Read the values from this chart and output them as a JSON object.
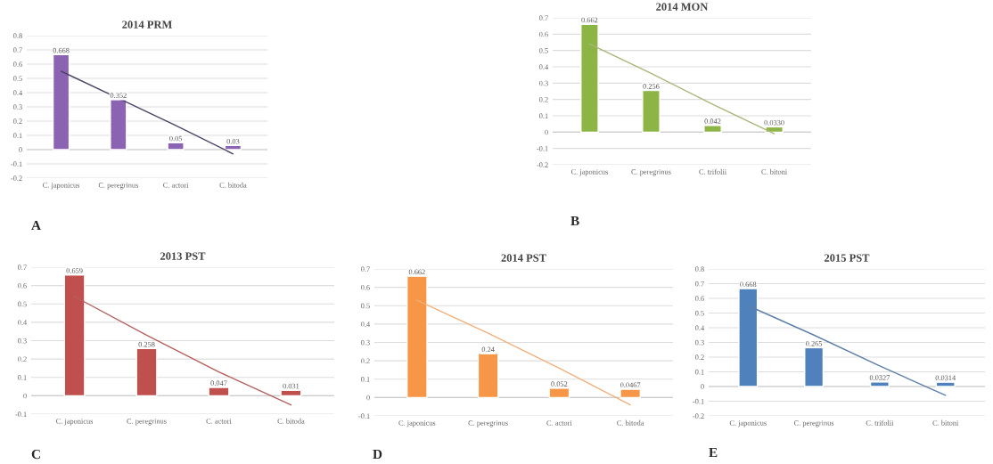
{
  "chart_data": [
    {
      "type": "bar",
      "title": "2014 PRM",
      "categories": [
        "C. japonicus",
        "C. peregrinus",
        "C. actori",
        "C. bitoda"
      ],
      "ylim": [
        -0.2,
        0.8
      ],
      "yticks": [
        -0.2,
        -0.1,
        0,
        0.1,
        0.2,
        0.3,
        0.4,
        0.5,
        0.6,
        0.7,
        0.8
      ],
      "grid": "y",
      "annotations": [
        "A"
      ],
      "series": [
        {
          "color": "#8a63b3",
          "values": [
            0.668,
            0.352,
            0.05,
            0.03
          ],
          "value_labels": [
            "0.668",
            "0.352",
            "0.05",
            "0.03"
          ]
        },
        {
          "type": "line",
          "color": "#4e4466",
          "values": [
            0.55,
            0.36,
            0.17,
            -0.03
          ]
        }
      ]
    },
    {
      "type": "bar",
      "title": "2014 MON",
      "categories": [
        "C. japonicus",
        "C. peregrinus",
        "C. trifolii",
        "C. bitoni"
      ],
      "ylim": [
        -0.2,
        0.7
      ],
      "yticks": [
        -0.2,
        -0.1,
        0,
        0.1,
        0.2,
        0.3,
        0.4,
        0.5,
        0.6,
        0.7
      ],
      "grid": "y",
      "annotations": [
        "B"
      ],
      "series": [
        {
          "color": "#8db545",
          "values": [
            0.662,
            0.256,
            0.042,
            0.033
          ],
          "value_labels": [
            "0.662",
            "0.256",
            "0.042",
            "0.0330"
          ]
        },
        {
          "type": "line",
          "color": "#a9b77a",
          "values": [
            0.54,
            0.36,
            0.17,
            -0.01
          ]
        }
      ]
    },
    {
      "type": "bar",
      "title": "2013 PST",
      "categories": [
        "C. japonicus",
        "C. peregrinus",
        "C. actori",
        "C. bitoda"
      ],
      "ylim": [
        -0.1,
        0.7
      ],
      "yticks": [
        -0.1,
        0,
        0.1,
        0.2,
        0.3,
        0.4,
        0.5,
        0.6,
        0.7
      ],
      "grid": "y",
      "annotations": [
        "C"
      ],
      "series": [
        {
          "color": "#c0504d",
          "values": [
            0.659,
            0.258,
            0.047,
            0.031
          ],
          "value_labels": [
            "0.659",
            "0.258",
            "0.047",
            "0.031"
          ]
        },
        {
          "type": "line",
          "color": "#b5615e",
          "values": [
            0.54,
            0.33,
            0.13,
            -0.05
          ]
        }
      ]
    },
    {
      "type": "bar",
      "title": "2014 PST",
      "categories": [
        "C. japonicus",
        "C. peregrinus",
        "C. actori",
        "C. bitoda"
      ],
      "ylim": [
        -0.1,
        0.7
      ],
      "yticks": [
        -0.1,
        0,
        0.1,
        0.2,
        0.3,
        0.4,
        0.5,
        0.6,
        0.7
      ],
      "grid": "y",
      "annotations": [
        "D"
      ],
      "series": [
        {
          "color": "#f79646",
          "values": [
            0.662,
            0.24,
            0.052,
            0.0467
          ],
          "value_labels": [
            "0.662",
            "0.24",
            "0.052",
            "0.0467"
          ]
        },
        {
          "type": "line",
          "color": "#f2b07a",
          "values": [
            0.53,
            0.35,
            0.16,
            -0.04
          ]
        }
      ]
    },
    {
      "type": "bar",
      "title": "2015 PST",
      "categories": [
        "C. japonicus",
        "C. peregrinus",
        "C. trifolii",
        "C. bitoni"
      ],
      "ylim": [
        -0.2,
        0.8
      ],
      "yticks": [
        -0.2,
        -0.1,
        0,
        0.1,
        0.2,
        0.3,
        0.4,
        0.5,
        0.6,
        0.7,
        0.8
      ],
      "grid": "y",
      "annotations": [
        "E"
      ],
      "series": [
        {
          "color": "#4f81bd",
          "values": [
            0.668,
            0.265,
            0.0327,
            0.0314
          ],
          "value_labels": [
            "0.668",
            "0.265",
            "0.0327",
            "0.0314"
          ]
        },
        {
          "type": "line",
          "color": "#5f7fa8",
          "values": [
            0.55,
            0.35,
            0.14,
            -0.06
          ]
        }
      ]
    }
  ]
}
